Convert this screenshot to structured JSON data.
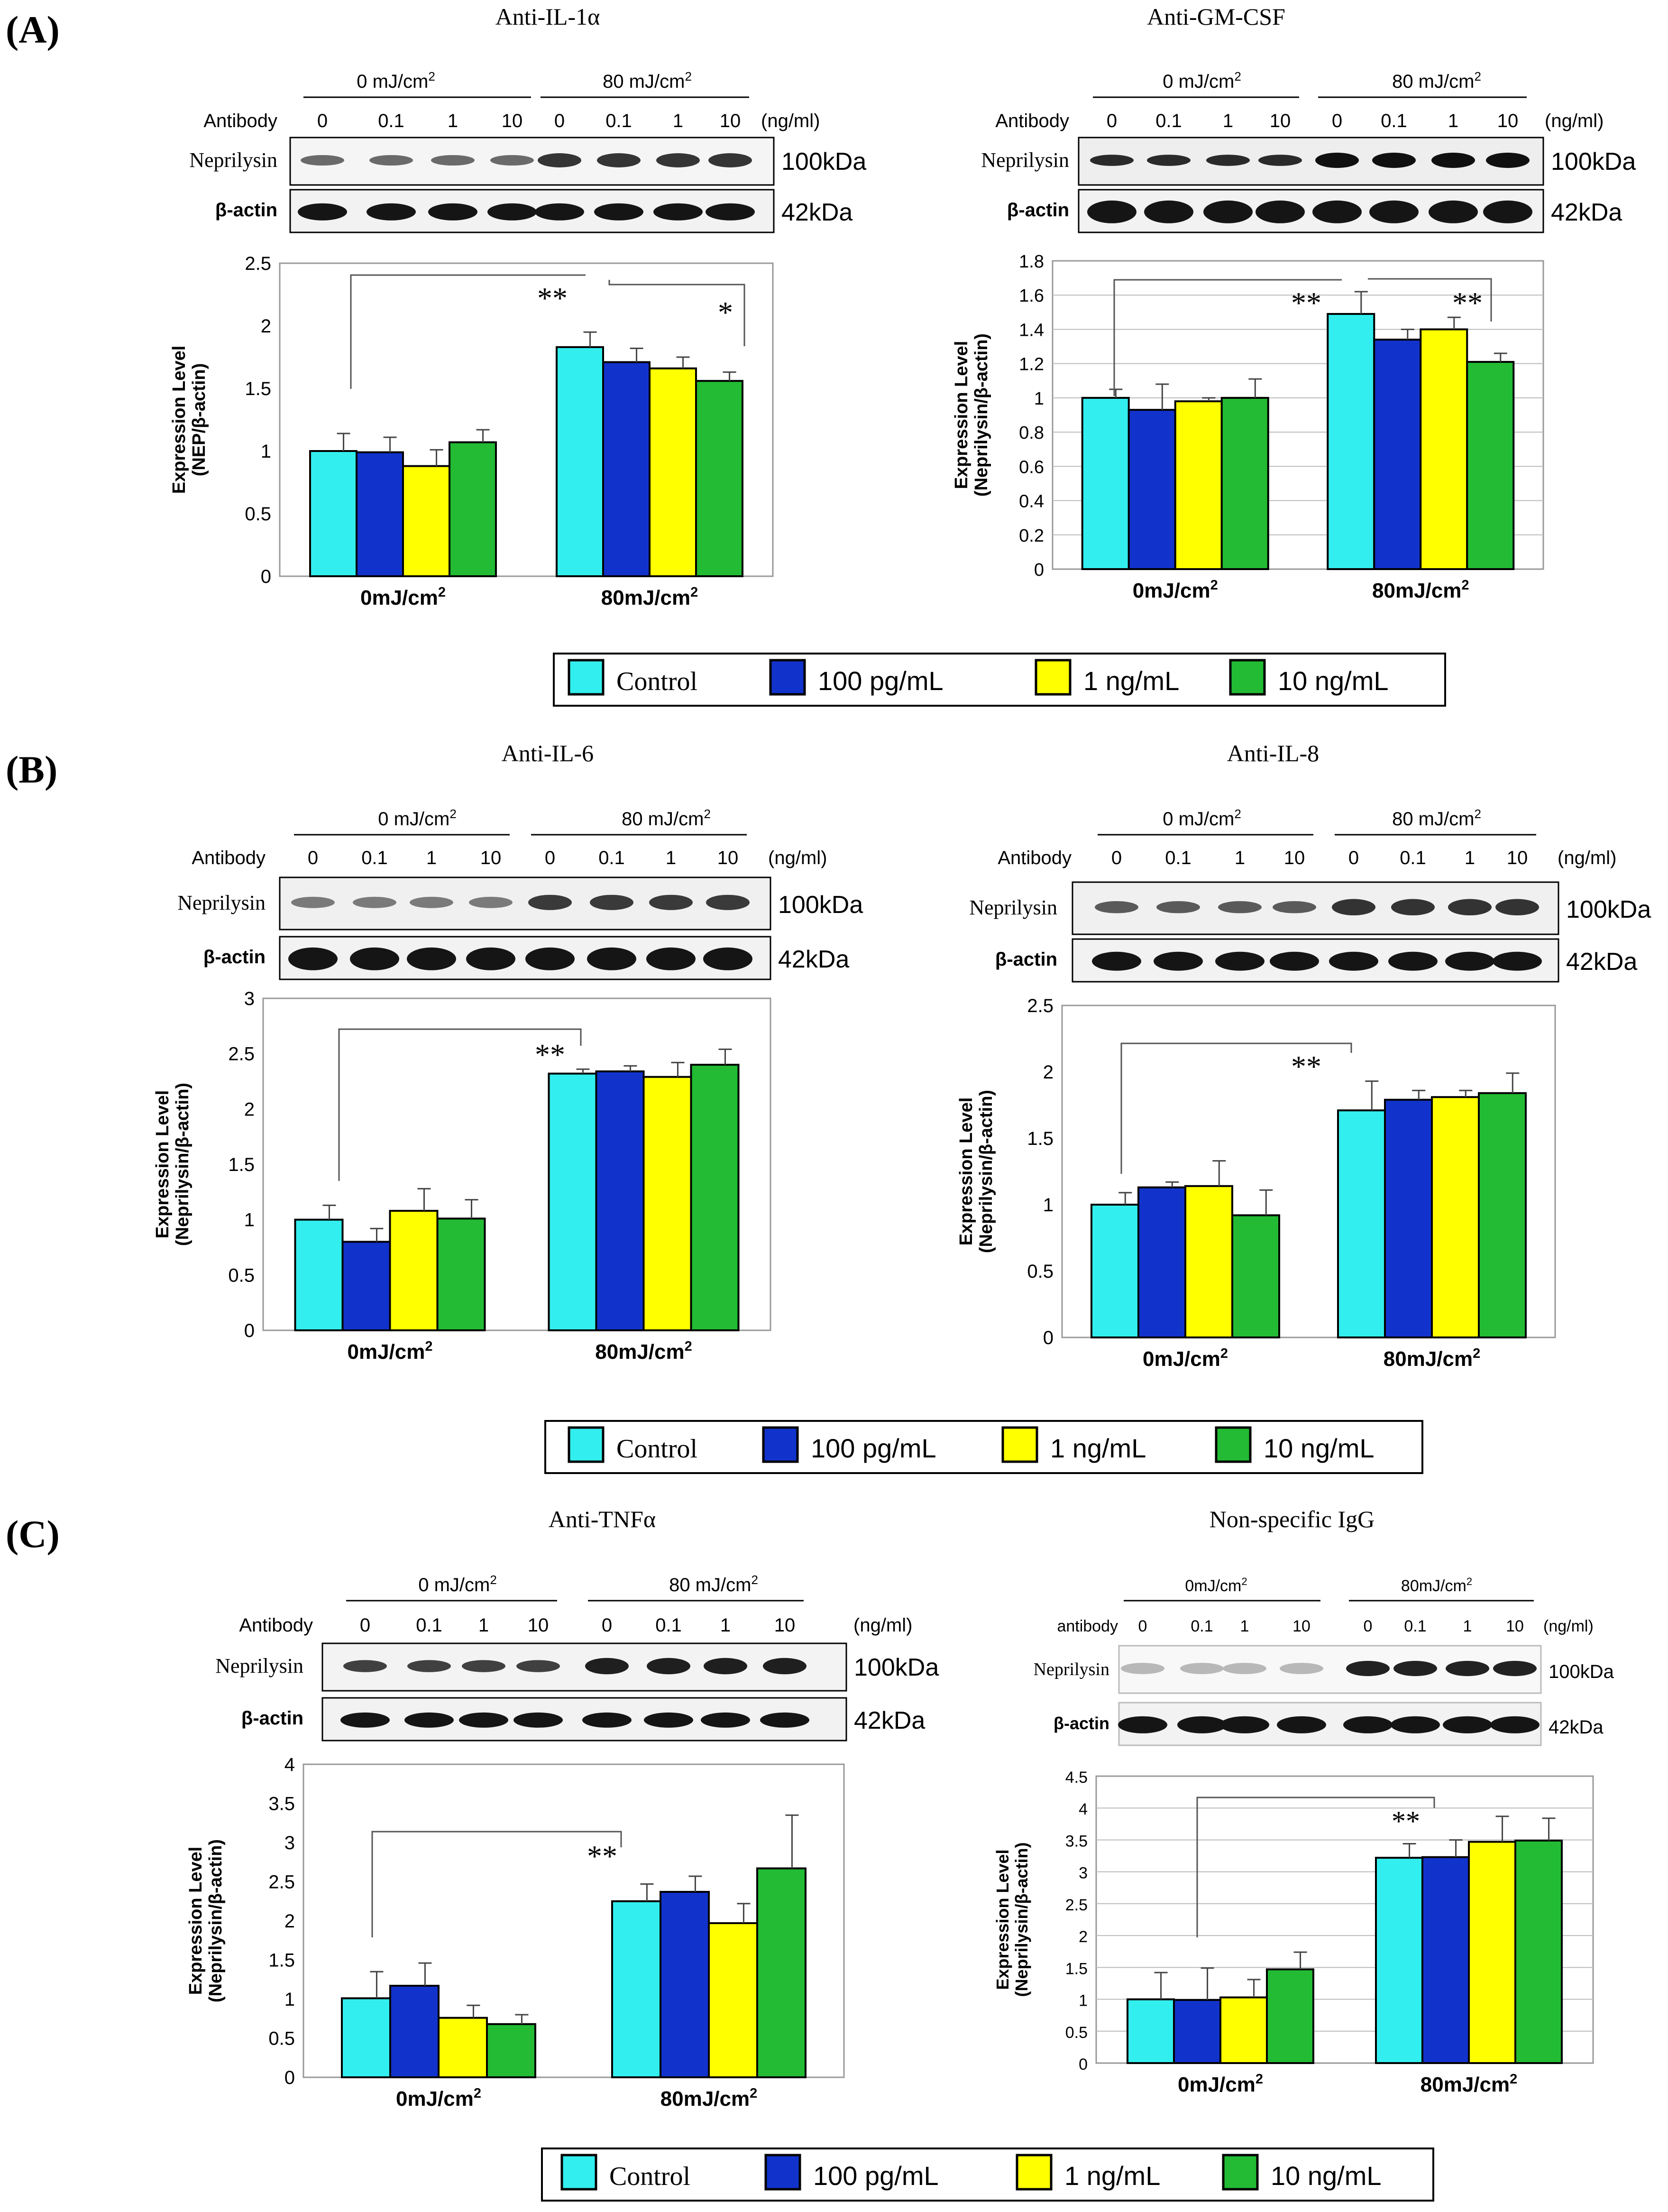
{
  "panels": [
    {
      "id": "A",
      "label": "(A)"
    },
    {
      "id": "B",
      "label": "(B)"
    },
    {
      "id": "C",
      "label": "(C)"
    }
  ],
  "blot_labels": {
    "dose_0": "0 mJ/cm²",
    "dose_80": "80 mJ/cm²",
    "dose_0_compact": "0mJ/cm²",
    "dose_80_compact": "80mJ/cm²",
    "antibody": "Antibody",
    "antibody_lower": "antibody",
    "conc_ticks": [
      "0",
      "0.1",
      "1",
      "10",
      "0",
      "0.1",
      "1",
      "10"
    ],
    "unit": "(ng/ml)",
    "neprilysin": "Neprilysin",
    "beta_actin": "β-actin",
    "kda_100": "100kDa",
    "kda_42": "42kDa"
  },
  "legend": {
    "items": [
      {
        "label": "Control",
        "color": "#33EEEE"
      },
      {
        "label": "100 pg/mL",
        "color": "#1133CC"
      },
      {
        "label": "1 ng/mL",
        "color": "#FFFF00"
      },
      {
        "label": "10 ng/mL",
        "color": "#22BB33"
      }
    ]
  },
  "chart_data": [
    {
      "type": "bar",
      "title": "Anti-IL-1α",
      "ylabel": "Expression Level (NEP/β-actin)",
      "ylim": [
        0,
        2.5
      ],
      "yticks": [
        0,
        0.5,
        1,
        1.5,
        2,
        2.5
      ],
      "categories": [
        "0mJ/cm²",
        "80mJ/cm²"
      ],
      "series": [
        {
          "name": "Control",
          "values": [
            1.0,
            1.83
          ],
          "errors": [
            0.14,
            0.12
          ]
        },
        {
          "name": "100 pg/mL",
          "values": [
            0.99,
            1.71
          ],
          "errors": [
            0.12,
            0.11
          ]
        },
        {
          "name": "1 ng/mL",
          "values": [
            0.88,
            1.66
          ],
          "errors": [
            0.13,
            0.09
          ]
        },
        {
          "name": "10 ng/mL",
          "values": [
            1.07,
            1.56
          ],
          "errors": [
            0.1,
            0.07
          ]
        }
      ],
      "significance": [
        {
          "label": "**"
        },
        {
          "label": "*"
        }
      ]
    },
    {
      "type": "bar",
      "title": "Anti-GM-CSF",
      "ylabel": "Expression Level (Neprilysin/β-actin)",
      "ylim": [
        0,
        1.8
      ],
      "yticks": [
        0,
        0.2,
        0.4,
        0.6,
        0.8,
        1,
        1.2,
        1.4,
        1.6,
        1.8
      ],
      "categories": [
        "0mJ/cm²",
        "80mJ/cm²"
      ],
      "series": [
        {
          "name": "Control",
          "values": [
            1.0,
            1.49
          ],
          "errors": [
            0.05,
            0.13
          ]
        },
        {
          "name": "100 pg/mL",
          "values": [
            0.93,
            1.34
          ],
          "errors": [
            0.15,
            0.06
          ]
        },
        {
          "name": "1 ng/mL",
          "values": [
            0.98,
            1.4
          ],
          "errors": [
            0.02,
            0.07
          ]
        },
        {
          "name": "10 ng/mL",
          "values": [
            1.0,
            1.21
          ],
          "errors": [
            0.11,
            0.05
          ]
        }
      ],
      "significance": [
        {
          "label": "**"
        },
        {
          "label": "**"
        }
      ]
    },
    {
      "type": "bar",
      "title": "Anti-IL-6",
      "ylabel": "Expression Level (Neprilysin/β-actin)",
      "ylim": [
        0,
        3
      ],
      "yticks": [
        0,
        0.5,
        1,
        1.5,
        2,
        2.5,
        3
      ],
      "categories": [
        "0mJ/cm²",
        "80mJ/cm²"
      ],
      "series": [
        {
          "name": "Control",
          "values": [
            1.0,
            2.32
          ],
          "errors": [
            0.13,
            0.04
          ]
        },
        {
          "name": "100 pg/mL",
          "values": [
            0.8,
            2.34
          ],
          "errors": [
            0.12,
            0.05
          ]
        },
        {
          "name": "1 ng/mL",
          "values": [
            1.08,
            2.29
          ],
          "errors": [
            0.2,
            0.13
          ]
        },
        {
          "name": "10 ng/mL",
          "values": [
            1.01,
            2.4
          ],
          "errors": [
            0.17,
            0.14
          ]
        }
      ],
      "significance": [
        {
          "label": "**"
        }
      ]
    },
    {
      "type": "bar",
      "title": "Anti-IL-8",
      "ylabel": "Expression Level (Neprilysin/β-actin)",
      "ylim": [
        0,
        2.5
      ],
      "yticks": [
        0,
        0.5,
        1,
        1.5,
        2,
        2.5
      ],
      "categories": [
        "0mJ/cm²",
        "80mJ/cm²"
      ],
      "series": [
        {
          "name": "Control",
          "values": [
            1.0,
            1.71
          ],
          "errors": [
            0.09,
            0.22
          ]
        },
        {
          "name": "100 pg/mL",
          "values": [
            1.13,
            1.79
          ],
          "errors": [
            0.04,
            0.07
          ]
        },
        {
          "name": "1 ng/mL",
          "values": [
            1.14,
            1.81
          ],
          "errors": [
            0.19,
            0.05
          ]
        },
        {
          "name": "10 ng/mL",
          "values": [
            0.92,
            1.84
          ],
          "errors": [
            0.19,
            0.15
          ]
        }
      ],
      "significance": [
        {
          "label": "**"
        }
      ]
    },
    {
      "type": "bar",
      "title": "Anti-TNFα",
      "ylabel": "Expression Level (Neprilysin/β-actin)",
      "ylim": [
        0,
        4
      ],
      "yticks": [
        0,
        0.5,
        1,
        1.5,
        2,
        2.5,
        3,
        3.5,
        4
      ],
      "categories": [
        "0mJ/cm²",
        "80mJ/cm²"
      ],
      "series": [
        {
          "name": "Control",
          "values": [
            1.01,
            2.25
          ],
          "errors": [
            0.34,
            0.22
          ]
        },
        {
          "name": "100 pg/mL",
          "values": [
            1.17,
            2.37
          ],
          "errors": [
            0.29,
            0.2
          ]
        },
        {
          "name": "1 ng/mL",
          "values": [
            0.76,
            1.97
          ],
          "errors": [
            0.16,
            0.25
          ]
        },
        {
          "name": "10 ng/mL",
          "values": [
            0.68,
            2.67
          ],
          "errors": [
            0.12,
            0.68
          ]
        }
      ],
      "significance": [
        {
          "label": "**"
        }
      ]
    },
    {
      "type": "bar",
      "title": "Non-specific IgG",
      "ylabel": "Expression Level (Neprilysin/β-actin)",
      "ylim": [
        0,
        4.5
      ],
      "yticks": [
        0,
        0.5,
        1,
        1.5,
        2,
        2.5,
        3,
        3.5,
        4,
        4.5
      ],
      "categories": [
        "0mJ/cm²",
        "80mJ/cm²"
      ],
      "series": [
        {
          "name": "Control",
          "values": [
            1.0,
            3.22
          ],
          "errors": [
            0.42,
            0.22
          ]
        },
        {
          "name": "100 pg/mL",
          "values": [
            0.99,
            3.23
          ],
          "errors": [
            0.5,
            0.27
          ]
        },
        {
          "name": "1 ng/mL",
          "values": [
            1.03,
            3.47
          ],
          "errors": [
            0.28,
            0.4
          ]
        },
        {
          "name": "10 ng/mL",
          "values": [
            1.47,
            3.49
          ],
          "errors": [
            0.27,
            0.35
          ]
        }
      ],
      "significance": [
        {
          "label": "**"
        }
      ]
    }
  ]
}
